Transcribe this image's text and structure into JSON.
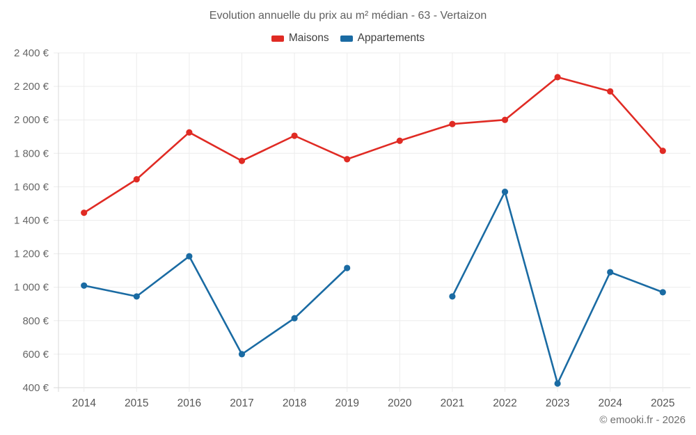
{
  "chart_data": {
    "type": "line",
    "title": "Evolution annuelle du prix au m² médian - 63 - Vertaizon",
    "categories": [
      "2014",
      "2015",
      "2016",
      "2017",
      "2018",
      "2019",
      "2020",
      "2021",
      "2022",
      "2023",
      "2024",
      "2025"
    ],
    "series": [
      {
        "name": "Maisons",
        "color": "#e02b24",
        "values": [
          1445,
          1645,
          1925,
          1755,
          1905,
          1765,
          1875,
          1975,
          2000,
          2255,
          2170,
          1815
        ]
      },
      {
        "name": "Appartements",
        "color": "#1a6ba3",
        "values": [
          1010,
          945,
          1185,
          600,
          815,
          1115,
          null,
          945,
          1570,
          425,
          1090,
          970
        ]
      }
    ],
    "ylim": [
      400,
      2400
    ],
    "y_ticks": [
      {
        "value": 400,
        "label": "400 €"
      },
      {
        "value": 600,
        "label": "600 €"
      },
      {
        "value": 800,
        "label": "800 €"
      },
      {
        "value": 1000,
        "label": "1 000 €"
      },
      {
        "value": 1200,
        "label": "1 200 €"
      },
      {
        "value": 1400,
        "label": "1 400 €"
      },
      {
        "value": 1600,
        "label": "1 600 €"
      },
      {
        "value": 1800,
        "label": "1 800 €"
      },
      {
        "value": 2000,
        "label": "2 000 €"
      },
      {
        "value": 2200,
        "label": "2 200 €"
      },
      {
        "value": 2400,
        "label": "2 400 €"
      }
    ],
    "grid": true,
    "legend_position": "top-center",
    "xlabel": "",
    "ylabel": ""
  },
  "footer": {
    "copyright": "© emooki.fr - 2026"
  }
}
